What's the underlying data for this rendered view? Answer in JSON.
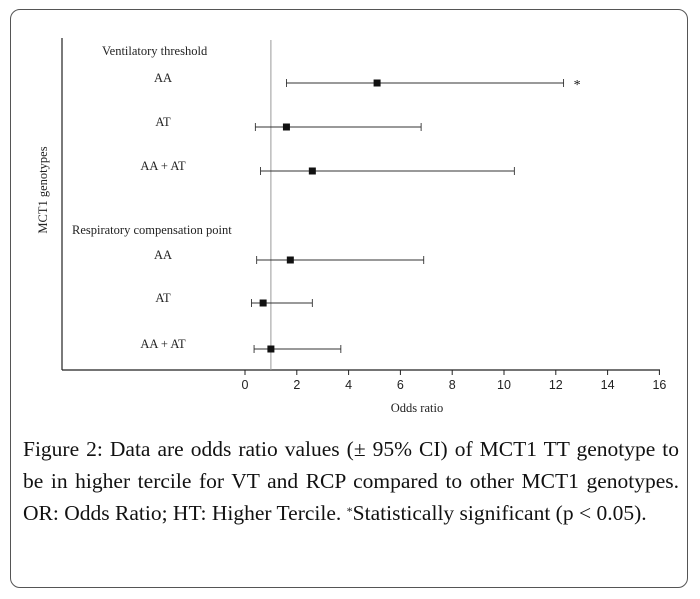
{
  "chart_data": {
    "type": "forest",
    "xlabel": "Odds ratio",
    "ylabel": "MCT1 genotypes",
    "xlim": [
      0,
      16
    ],
    "xticks": [
      0,
      2,
      4,
      6,
      8,
      10,
      12,
      14,
      16
    ],
    "reference_line": 1,
    "groups": [
      {
        "label": "Ventilatory threshold",
        "rows": [
          {
            "label": "AA",
            "or": 5.1,
            "ci": [
              1.6,
              12.3
            ],
            "significant_marker": "*"
          },
          {
            "label": "AT",
            "or": 1.6,
            "ci": [
              0.4,
              6.8
            ],
            "significant_marker": ""
          },
          {
            "label": "AA + AT",
            "or": 2.6,
            "ci": [
              0.6,
              10.4
            ],
            "significant_marker": ""
          }
        ]
      },
      {
        "label": "Respiratory compensation point",
        "rows": [
          {
            "label": "AA",
            "or": 1.75,
            "ci": [
              0.45,
              6.9
            ],
            "significant_marker": ""
          },
          {
            "label": "AT",
            "or": 0.7,
            "ci": [
              0.25,
              2.6
            ],
            "significant_marker": ""
          },
          {
            "label": "AA + AT",
            "or": 1.0,
            "ci": [
              0.35,
              3.7
            ],
            "significant_marker": ""
          }
        ]
      }
    ]
  },
  "caption": {
    "label": "Figure 2:",
    "text_before": " Data are odds ratio values (± 95% CI) of MCT1 TT genotype to be in higher tercile for VT and RCP compared to other MCT1 genotypes. OR: Odds Ratio; HT: Higher Tercile. ",
    "sup": "*",
    "text_after": "Statistically significant (p < 0.05)."
  }
}
